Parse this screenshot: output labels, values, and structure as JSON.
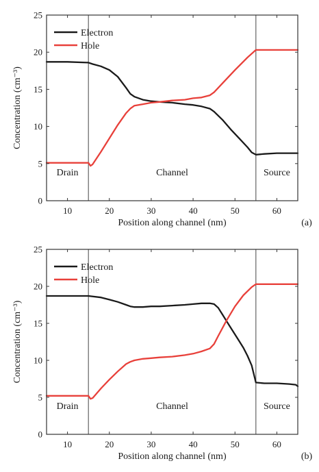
{
  "chart_data": [
    {
      "type": "line",
      "panel_label": "(a)",
      "xlabel": "Position along channel (nm)",
      "ylabel": "Concentration (cm⁻³)",
      "xlim": [
        5,
        65
      ],
      "ylim": [
        0,
        25
      ],
      "xticks": [
        10,
        20,
        30,
        40,
        50,
        60
      ],
      "yticks": [
        0,
        5,
        10,
        15,
        20,
        25
      ],
      "grid": false,
      "legend_position": "top-left",
      "vlines": [
        15,
        55
      ],
      "regions": [
        {
          "label": "Drain",
          "x": 10
        },
        {
          "label": "Channel",
          "x": 35
        },
        {
          "label": "Source",
          "x": 60
        }
      ],
      "series": [
        {
          "name": "Electron",
          "color": "#1a1a1a",
          "x": [
            5,
            10,
            15,
            16,
            18,
            20,
            22,
            24,
            25,
            26,
            28,
            30,
            32,
            35,
            38,
            40,
            42,
            44,
            45,
            47,
            49,
            51,
            53,
            54,
            55,
            57,
            60,
            63,
            65
          ],
          "y": [
            18.7,
            18.7,
            18.6,
            18.4,
            18.1,
            17.6,
            16.7,
            15.2,
            14.4,
            14.0,
            13.6,
            13.4,
            13.3,
            13.2,
            13.0,
            12.9,
            12.7,
            12.4,
            12.0,
            10.9,
            9.6,
            8.4,
            7.2,
            6.5,
            6.2,
            6.3,
            6.4,
            6.4,
            6.4
          ]
        },
        {
          "name": "Hole",
          "color": "#e8403a",
          "x": [
            5,
            10,
            15,
            15.5,
            16,
            18,
            20,
            22,
            24,
            25,
            26,
            28,
            30,
            32,
            35,
            38,
            40,
            42,
            44,
            45,
            47,
            50,
            53,
            55,
            57,
            60,
            63,
            65
          ],
          "y": [
            5.1,
            5.1,
            5.1,
            4.7,
            4.9,
            6.6,
            8.4,
            10.2,
            11.8,
            12.4,
            12.8,
            13.0,
            13.2,
            13.3,
            13.5,
            13.6,
            13.8,
            13.9,
            14.2,
            14.6,
            15.8,
            17.6,
            19.3,
            20.3,
            20.3,
            20.3,
            20.3,
            20.3
          ]
        }
      ]
    },
    {
      "type": "line",
      "panel_label": "(b)",
      "xlabel": "Position along channel (nm)",
      "ylabel": "Concentration (cm⁻³)",
      "xlim": [
        5,
        65
      ],
      "ylim": [
        0,
        25
      ],
      "xticks": [
        10,
        20,
        30,
        40,
        50,
        60
      ],
      "yticks": [
        0,
        5,
        10,
        15,
        20,
        25
      ],
      "grid": false,
      "legend_position": "top-left",
      "vlines": [
        15,
        55
      ],
      "regions": [
        {
          "label": "Drain",
          "x": 10
        },
        {
          "label": "Channel",
          "x": 35
        },
        {
          "label": "Source",
          "x": 60
        }
      ],
      "series": [
        {
          "name": "Electron",
          "color": "#1a1a1a",
          "x": [
            5,
            10,
            15,
            18,
            20,
            22,
            24,
            25,
            26,
            28,
            30,
            32,
            35,
            38,
            40,
            42,
            44,
            45,
            46,
            47,
            48,
            49,
            50,
            51,
            52,
            53,
            54,
            55,
            57,
            60,
            63,
            64.5,
            65
          ],
          "y": [
            18.7,
            18.7,
            18.7,
            18.5,
            18.2,
            17.9,
            17.5,
            17.3,
            17.2,
            17.2,
            17.3,
            17.3,
            17.4,
            17.5,
            17.6,
            17.7,
            17.7,
            17.6,
            17.1,
            16.2,
            15.3,
            14.4,
            13.5,
            12.6,
            11.7,
            10.6,
            9.3,
            7.0,
            6.9,
            6.9,
            6.8,
            6.7,
            6.5
          ]
        },
        {
          "name": "Hole",
          "color": "#e8403a",
          "x": [
            5,
            10,
            15,
            15.5,
            16,
            18,
            20,
            22,
            24,
            25,
            26,
            28,
            30,
            32,
            35,
            38,
            40,
            42,
            44,
            45,
            46,
            48,
            50,
            52,
            54,
            55,
            57,
            60,
            63,
            65
          ],
          "y": [
            5.2,
            5.2,
            5.2,
            4.8,
            4.9,
            6.2,
            7.4,
            8.5,
            9.5,
            9.8,
            10.0,
            10.2,
            10.3,
            10.4,
            10.5,
            10.7,
            10.9,
            11.2,
            11.6,
            12.2,
            13.3,
            15.4,
            17.3,
            18.8,
            19.9,
            20.3,
            20.3,
            20.3,
            20.3,
            20.3
          ]
        }
      ]
    }
  ]
}
